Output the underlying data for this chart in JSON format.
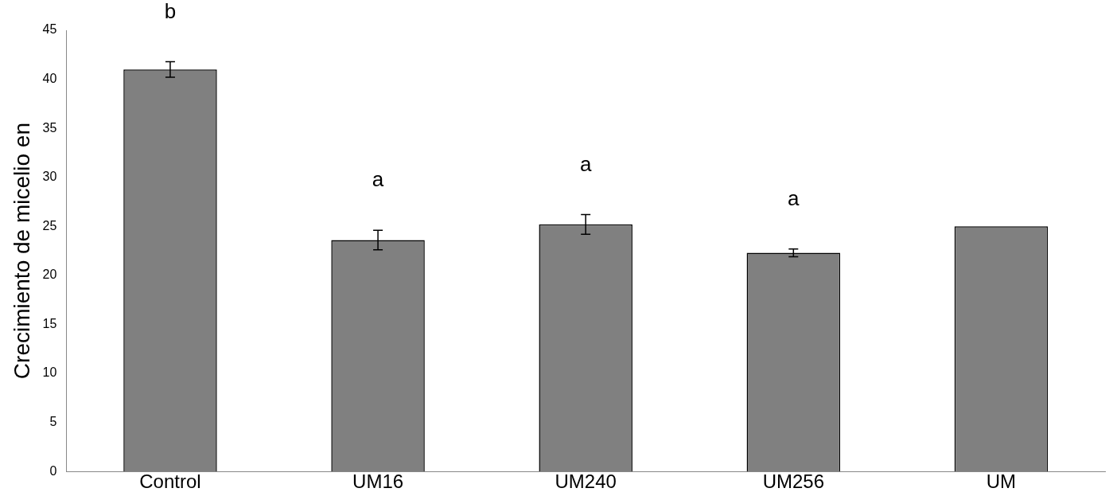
{
  "chart_data": {
    "type": "bar",
    "ylabel": "Crecimiento de micelio en",
    "categories": [
      "Control",
      "UM16",
      "UM240",
      "UM256",
      "UM"
    ],
    "series": [
      {
        "color": "#808080",
        "values": [
          41,
          23.6,
          25.2,
          22.3,
          25.0
        ],
        "errors": [
          0.8,
          1.0,
          1.0,
          0.4,
          null
        ]
      }
    ],
    "ylim": [
      0,
      45
    ],
    "yticks": [
      0,
      5,
      10,
      15,
      20,
      25,
      30,
      35,
      40,
      45
    ],
    "grid": false,
    "legend": false,
    "annotations": [
      "b",
      "a",
      "a",
      "a"
    ]
  }
}
